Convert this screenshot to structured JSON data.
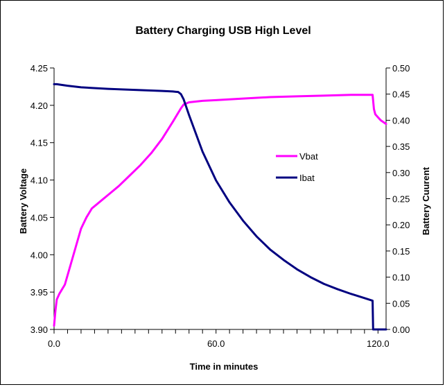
{
  "chart_data": {
    "type": "line",
    "title": "Battery Charging USB High Level",
    "xlabel": "Time in minutes",
    "ylabel_left": "Battery Voltage",
    "ylabel_right": "Battery Cuurent",
    "xlim": [
      0,
      123
    ],
    "ylim_left": [
      3.9,
      4.25
    ],
    "ylim_right": [
      0.0,
      0.5
    ],
    "x_tick_labels": [
      "0.0",
      "60.0",
      "120.0"
    ],
    "x_tick_values": [
      0,
      60,
      120
    ],
    "x_minor_step": 5,
    "y_left_tick_labels": [
      "4.25",
      "4.20",
      "4.15",
      "4.10",
      "4.05",
      "4.00",
      "3.95",
      "3.90"
    ],
    "y_left_tick_values": [
      4.25,
      4.2,
      4.15,
      4.1,
      4.05,
      4.0,
      3.95,
      3.9
    ],
    "y_right_tick_labels": [
      "0.50",
      "0.45",
      "0.40",
      "0.35",
      "0.30",
      "0.25",
      "0.20",
      "0.15",
      "0.10",
      "0.05",
      "0.00"
    ],
    "y_right_tick_values": [
      0.5,
      0.45,
      0.4,
      0.35,
      0.3,
      0.25,
      0.2,
      0.15,
      0.1,
      0.05,
      0.0
    ],
    "grid": false,
    "legend_position": "center-right",
    "series": [
      {
        "name": "Vbat",
        "axis": "left",
        "color": "#ff00ff",
        "x": [
          0,
          0.5,
          1,
          2,
          4,
          6,
          8,
          10,
          12,
          14,
          16,
          18,
          20,
          24,
          28,
          32,
          36,
          40,
          44,
          46,
          47,
          48,
          50,
          55,
          60,
          70,
          80,
          90,
          100,
          110,
          118,
          118.5,
          119,
          120,
          121,
          123
        ],
        "y": [
          3.905,
          3.925,
          3.94,
          3.948,
          3.96,
          3.985,
          4.01,
          4.035,
          4.05,
          4.062,
          4.068,
          4.074,
          4.08,
          4.092,
          4.106,
          4.12,
          4.136,
          4.155,
          4.178,
          4.19,
          4.196,
          4.201,
          4.204,
          4.206,
          4.207,
          4.209,
          4.211,
          4.212,
          4.213,
          4.214,
          4.214,
          4.195,
          4.188,
          4.184,
          4.18,
          4.175
        ]
      },
      {
        "name": "Ibat",
        "axis": "right",
        "color": "#000080",
        "x": [
          0,
          1,
          5,
          10,
          20,
          30,
          40,
          44,
          46,
          47,
          48,
          50,
          55,
          60,
          65,
          70,
          75,
          80,
          85,
          90,
          95,
          100,
          105,
          110,
          115,
          118,
          118.2,
          120,
          123
        ],
        "y": [
          0.469,
          0.469,
          0.466,
          0.463,
          0.46,
          0.458,
          0.456,
          0.455,
          0.454,
          0.45,
          0.44,
          0.41,
          0.34,
          0.285,
          0.243,
          0.208,
          0.178,
          0.153,
          0.133,
          0.115,
          0.1,
          0.087,
          0.077,
          0.068,
          0.06,
          0.055,
          0.0,
          0.0,
          0.0
        ]
      }
    ]
  }
}
